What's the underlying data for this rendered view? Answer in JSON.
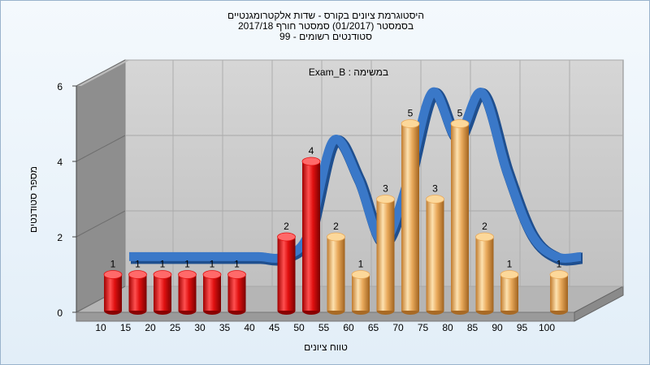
{
  "chart_data": {
    "type": "bar",
    "title_lines": [
      "היסטוגרמת ציונים בקורס - שדות אלקטרומגנטיים",
      "בסמסטר  (01/2017)  סמסטר חורף  2017/18",
      "סטודנטים רשומים - 99"
    ],
    "subtitle": "במשימה : Exam_B",
    "xlabel": "טווח ציונים",
    "ylabel": "מספר סטודנטים",
    "ylim": [
      0,
      6
    ],
    "y_ticks": [
      0,
      2,
      4,
      6
    ],
    "categories": [
      "10",
      "15",
      "20",
      "25",
      "30",
      "35",
      "40",
      "45",
      "50",
      "55",
      "60",
      "65",
      "70",
      "75",
      "80",
      "85",
      "90",
      "95",
      "100"
    ],
    "values": [
      1,
      1,
      1,
      1,
      1,
      1,
      0,
      2,
      4,
      2,
      1,
      3,
      5,
      3,
      5,
      2,
      1,
      0,
      1
    ],
    "bar_colors": [
      "red",
      "red",
      "red",
      "red",
      "red",
      "red",
      "red",
      "red",
      "red",
      "orange",
      "orange",
      "orange",
      "orange",
      "orange",
      "orange",
      "orange",
      "orange",
      "orange",
      "orange"
    ],
    "curve": [
      0.6,
      0.6,
      0.6,
      0.6,
      0.6,
      0.6,
      0.6,
      1.2,
      3.7,
      2.7,
      1.0,
      2.6,
      5.0,
      3.8,
      5.0,
      2.9,
      1.2,
      0.6,
      0.6
    ],
    "grid": true,
    "legend": "none"
  },
  "colors": {
    "red_light": "#ff6a6a",
    "red_mid": "#e01010",
    "red_dark": "#8a0000",
    "orange_light": "#fcd89a",
    "orange_mid": "#e9a95a",
    "orange_dark": "#a86a25",
    "curve_blue": "#3a78c8",
    "curve_dark": "#777777",
    "wall": "#c8c8c8",
    "left_wall": "#8c8c8c",
    "floor": "#b8b8b8"
  }
}
